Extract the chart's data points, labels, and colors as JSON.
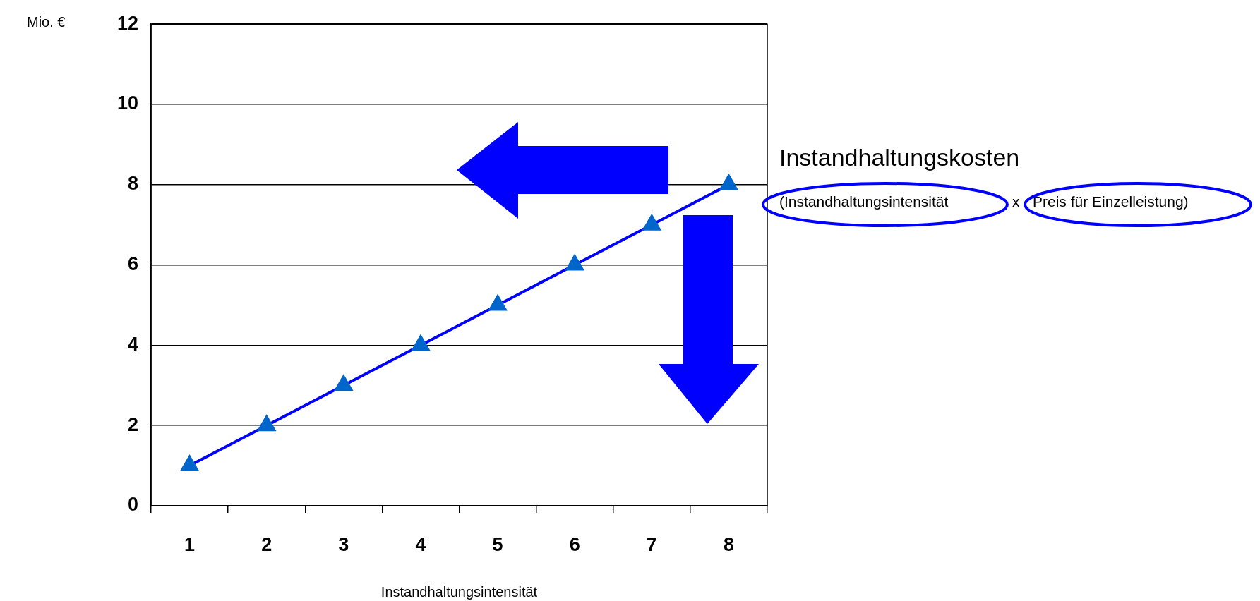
{
  "chart_data": {
    "type": "line",
    "ylabel": "Mio. €",
    "xlabel": "Instandhaltungsintensität",
    "categories": [
      "1",
      "2",
      "3",
      "4",
      "5",
      "6",
      "7",
      "8"
    ],
    "series": [
      {
        "color": "#0000ff",
        "values": [
          1,
          2,
          3,
          4,
          5,
          6,
          7,
          8
        ]
      }
    ],
    "marker": "triangle",
    "ylim": [
      0,
      12
    ],
    "yticks": [
      0,
      2,
      4,
      6,
      8,
      10,
      12
    ],
    "grid": "y",
    "legend": false,
    "annotations": [
      "Instandhaltungskosten",
      "(Instandhaltungsintensität",
      "x",
      "Preis für Einzelleistung)"
    ]
  }
}
